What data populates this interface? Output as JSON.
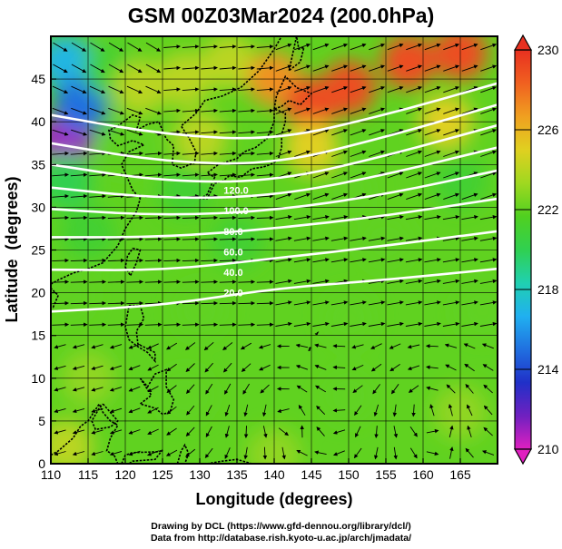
{
  "chart_data": {
    "type": "heatmap",
    "title": "GSM 00Z03Mar2024 (200.0hPa)",
    "xlabel": "Longitude (degrees)",
    "ylabel": "Latitude  (degrees)",
    "xlim": [
      110,
      170
    ],
    "ylim": [
      0,
      50
    ],
    "xticks": [
      110,
      115,
      120,
      125,
      130,
      135,
      140,
      145,
      150,
      155,
      160,
      165
    ],
    "yticks": [
      0,
      5,
      10,
      15,
      20,
      25,
      30,
      35,
      40,
      45
    ],
    "grid": true,
    "colorbar": {
      "ticks": [
        210,
        214,
        218,
        222,
        226,
        230
      ],
      "range": [
        210,
        230
      ],
      "colors": [
        "#e020c0",
        "#7020c0",
        "#2030c8",
        "#2070e0",
        "#20b0f0",
        "#20d0b0",
        "#30d050",
        "#50d020",
        "#a0d820",
        "#e0d020",
        "#f0a020",
        "#f06020",
        "#e83020"
      ],
      "placement": "right"
    },
    "field_samples": [
      {
        "lon": 112,
        "lat": 47,
        "value": 217
      },
      {
        "lon": 112,
        "lat": 38,
        "value": 211
      },
      {
        "lon": 114,
        "lat": 42,
        "value": 215
      },
      {
        "lon": 118,
        "lat": 46,
        "value": 221
      },
      {
        "lon": 122,
        "lat": 44,
        "value": 224
      },
      {
        "lon": 128,
        "lat": 45,
        "value": 224
      },
      {
        "lon": 134,
        "lat": 47,
        "value": 224
      },
      {
        "lon": 140,
        "lat": 45,
        "value": 227
      },
      {
        "lon": 145,
        "lat": 42,
        "value": 229
      },
      {
        "lon": 150,
        "lat": 44,
        "value": 229
      },
      {
        "lon": 158,
        "lat": 47,
        "value": 229
      },
      {
        "lon": 165,
        "lat": 48,
        "value": 229
      },
      {
        "lon": 163,
        "lat": 40,
        "value": 225
      },
      {
        "lon": 145,
        "lat": 37,
        "value": 225
      },
      {
        "lon": 130,
        "lat": 38,
        "value": 224
      },
      {
        "lon": 120,
        "lat": 37,
        "value": 222
      },
      {
        "lon": 112,
        "lat": 33,
        "value": 220
      },
      {
        "lon": 128,
        "lat": 32,
        "value": 221
      },
      {
        "lon": 150,
        "lat": 32,
        "value": 222
      },
      {
        "lon": 165,
        "lat": 33,
        "value": 221
      },
      {
        "lon": 115,
        "lat": 27,
        "value": 221
      },
      {
        "lon": 135,
        "lat": 26,
        "value": 221
      },
      {
        "lon": 155,
        "lat": 26,
        "value": 222
      },
      {
        "lon": 112,
        "lat": 20,
        "value": 222
      },
      {
        "lon": 130,
        "lat": 18,
        "value": 222
      },
      {
        "lon": 150,
        "lat": 17,
        "value": 222
      },
      {
        "lon": 168,
        "lat": 18,
        "value": 222
      },
      {
        "lon": 115,
        "lat": 10,
        "value": 223
      },
      {
        "lon": 128,
        "lat": 8,
        "value": 222
      },
      {
        "lon": 150,
        "lat": 8,
        "value": 222
      },
      {
        "lon": 165,
        "lat": 6,
        "value": 223
      },
      {
        "lon": 112,
        "lat": 2,
        "value": 224
      },
      {
        "lon": 140,
        "lat": 1,
        "value": 223
      }
    ],
    "jets": [
      {
        "points": [
          [
            110,
            40.8
          ],
          [
            125,
            38.5
          ],
          [
            140,
            37.8
          ],
          [
            155,
            40.8
          ],
          [
            170,
            44.5
          ]
        ]
      },
      {
        "points": [
          [
            110,
            37.5
          ],
          [
            125,
            35.3
          ],
          [
            140,
            35.0
          ],
          [
            155,
            38.2
          ],
          [
            170,
            42.0
          ]
        ]
      },
      {
        "points": [
          [
            110,
            35.0
          ],
          [
            125,
            33.0
          ],
          [
            140,
            33.0
          ],
          [
            155,
            36.0
          ],
          [
            170,
            39.6
          ]
        ]
      },
      {
        "points": [
          [
            110,
            32.3
          ],
          [
            125,
            31.0
          ],
          [
            140,
            31.3
          ],
          [
            155,
            33.8
          ],
          [
            170,
            37.0
          ]
        ]
      },
      {
        "points": [
          [
            110,
            29.8
          ],
          [
            125,
            29.0
          ],
          [
            140,
            29.6
          ],
          [
            155,
            31.5
          ],
          [
            170,
            34.3
          ]
        ]
      },
      {
        "points": [
          [
            110,
            26.5
          ],
          [
            125,
            26.5
          ],
          [
            140,
            27.5
          ],
          [
            155,
            29.0
          ],
          [
            170,
            31.0
          ]
        ]
      },
      {
        "points": [
          [
            110,
            22.7
          ],
          [
            125,
            22.6
          ],
          [
            140,
            24.0
          ],
          [
            155,
            25.5
          ],
          [
            170,
            27.2
          ]
        ]
      },
      {
        "points": [
          [
            110,
            17.8
          ],
          [
            125,
            18.5
          ],
          [
            140,
            20.5
          ],
          [
            155,
            21.5
          ],
          [
            170,
            22.8
          ]
        ]
      }
    ],
    "speed_labels": [
      "120.0",
      "100.0",
      "80.0",
      "60.0",
      "40.0",
      "20.0"
    ]
  },
  "credit": {
    "line1": "Drawing by DCL (https://www.gfd-dennou.org/library/dcl/)",
    "line2": "Data from http://database.rish.kyoto-u.ac.jp/arch/jmadata/"
  }
}
